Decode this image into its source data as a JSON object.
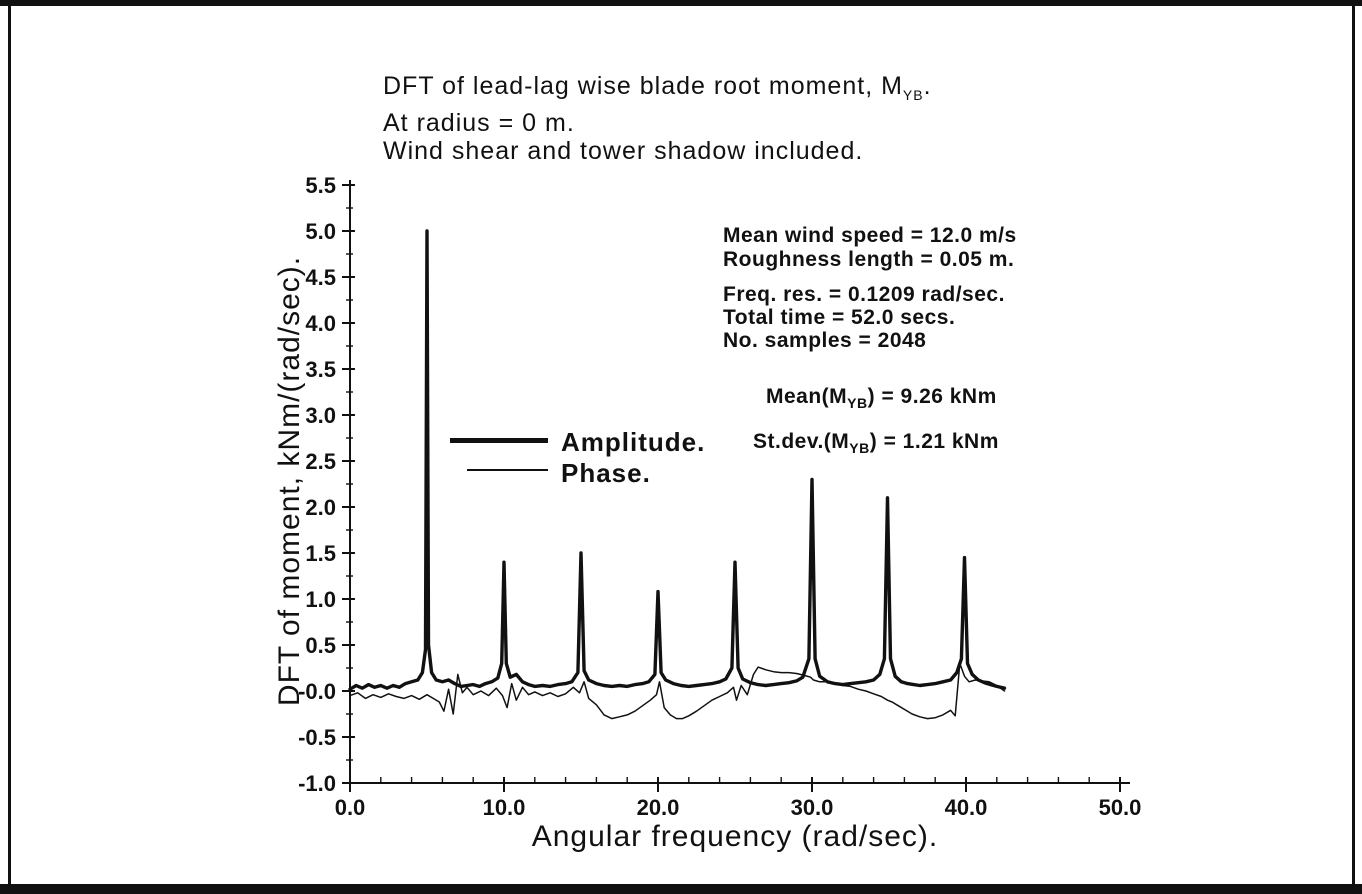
{
  "colors": {
    "ink": "#111111",
    "background": "#ffffff"
  },
  "chart_data": {
    "type": "line",
    "title_lines": {
      "line1": {
        "pre": "DFT of lead-lag wise blade root moment, M",
        "sub": "YB",
        "post": "."
      },
      "line2": "At radius = 0 m.",
      "line3": "Wind shear and tower shadow included."
    },
    "xlabel": "Angular frequency (rad/sec).",
    "ylabel": "DFT of moment, kNm/(rad/sec).",
    "xlim": [
      0,
      50
    ],
    "ylim": [
      -1.0,
      5.5
    ],
    "grid": false,
    "x_tick_values": [
      0,
      10,
      20,
      30,
      40,
      50
    ],
    "x_tick_labels": [
      "0.0",
      "10.0",
      "20.0",
      "30.0",
      "40.0",
      "50.0"
    ],
    "x_minor_tick_step": 2,
    "y_tick_values": [
      5.5,
      5.0,
      4.5,
      4.0,
      3.5,
      3.0,
      2.5,
      2.0,
      1.5,
      1.0,
      0.5,
      0.0,
      -0.5,
      -1.0
    ],
    "y_tick_labels": [
      "5.5",
      "5.0",
      "4.5",
      "4.0",
      "3.5",
      "3.0",
      "2.5",
      "2.0",
      "1.5",
      "1.0",
      "0.5",
      "-0.0",
      "-0.5",
      "-1.0"
    ],
    "y_minor_tick_step": 0.25,
    "legend_position": "inside-left",
    "legend": [
      {
        "label": "Amplitude.",
        "line": "thick"
      },
      {
        "label": "Phase.",
        "line": "thin"
      }
    ],
    "annotations": {
      "info1": [
        "Mean wind speed = 12.0 m/s",
        "Roughness length = 0.05 m."
      ],
      "info2": [
        "Freq. res. = 0.1209 rad/sec.",
        "Total time = 52.0 secs.",
        "No. samples = 2048"
      ],
      "mean": {
        "pre": "Mean(M",
        "sub": "YB",
        "post": ") = 9.26 kNm"
      },
      "stdev": {
        "pre": "St.dev.(M",
        "sub": "YB",
        "post": ") = 1.21 kNm"
      }
    },
    "amplitude_peaks": [
      {
        "x": 5.0,
        "amplitude": 5.0
      },
      {
        "x": 10.0,
        "amplitude": 1.4
      },
      {
        "x": 15.0,
        "amplitude": 1.5
      },
      {
        "x": 20.0,
        "amplitude": 1.1
      },
      {
        "x": 25.0,
        "amplitude": 1.4
      },
      {
        "x": 30.0,
        "amplitude": 2.3
      },
      {
        "x": 34.9,
        "amplitude": 2.1
      },
      {
        "x": 39.9,
        "amplitude": 1.45
      }
    ],
    "series": [
      {
        "name": "Amplitude",
        "points": [
          [
            0,
            0.02
          ],
          [
            0.4,
            0.06
          ],
          [
            0.8,
            0.03
          ],
          [
            1.2,
            0.07
          ],
          [
            1.6,
            0.04
          ],
          [
            2,
            0.06
          ],
          [
            2.4,
            0.03
          ],
          [
            2.8,
            0.06
          ],
          [
            3.2,
            0.04
          ],
          [
            3.6,
            0.08
          ],
          [
            4,
            0.1
          ],
          [
            4.4,
            0.12
          ],
          [
            4.7,
            0.2
          ],
          [
            4.9,
            0.45
          ],
          [
            5,
            5.0
          ],
          [
            5.1,
            0.5
          ],
          [
            5.3,
            0.2
          ],
          [
            5.6,
            0.12
          ],
          [
            6,
            0.1
          ],
          [
            6.4,
            0.12
          ],
          [
            6.8,
            0.08
          ],
          [
            7.2,
            0.05
          ],
          [
            7.6,
            0.06
          ],
          [
            8,
            0.07
          ],
          [
            8.4,
            0.05
          ],
          [
            8.8,
            0.08
          ],
          [
            9.2,
            0.1
          ],
          [
            9.6,
            0.14
          ],
          [
            9.85,
            0.3
          ],
          [
            10,
            1.4
          ],
          [
            10.15,
            0.3
          ],
          [
            10.4,
            0.15
          ],
          [
            10.8,
            0.18
          ],
          [
            11.2,
            0.1
          ],
          [
            11.6,
            0.07
          ],
          [
            12,
            0.05
          ],
          [
            12.5,
            0.06
          ],
          [
            13,
            0.05
          ],
          [
            13.5,
            0.07
          ],
          [
            14,
            0.08
          ],
          [
            14.4,
            0.1
          ],
          [
            14.8,
            0.2
          ],
          [
            15,
            1.5
          ],
          [
            15.2,
            0.22
          ],
          [
            15.5,
            0.12
          ],
          [
            16,
            0.08
          ],
          [
            16.5,
            0.06
          ],
          [
            17,
            0.05
          ],
          [
            17.5,
            0.06
          ],
          [
            18,
            0.05
          ],
          [
            18.5,
            0.07
          ],
          [
            19,
            0.08
          ],
          [
            19.4,
            0.1
          ],
          [
            19.8,
            0.18
          ],
          [
            20,
            1.08
          ],
          [
            20.2,
            0.2
          ],
          [
            20.5,
            0.12
          ],
          [
            21,
            0.08
          ],
          [
            21.5,
            0.06
          ],
          [
            22,
            0.05
          ],
          [
            22.5,
            0.06
          ],
          [
            23,
            0.07
          ],
          [
            23.5,
            0.08
          ],
          [
            24,
            0.1
          ],
          [
            24.4,
            0.13
          ],
          [
            24.8,
            0.25
          ],
          [
            25,
            1.4
          ],
          [
            25.2,
            0.25
          ],
          [
            25.5,
            0.13
          ],
          [
            26,
            0.09
          ],
          [
            26.5,
            0.07
          ],
          [
            27,
            0.06
          ],
          [
            27.5,
            0.07
          ],
          [
            28,
            0.08
          ],
          [
            28.5,
            0.09
          ],
          [
            29,
            0.11
          ],
          [
            29.4,
            0.15
          ],
          [
            29.8,
            0.35
          ],
          [
            30,
            2.3
          ],
          [
            30.2,
            0.35
          ],
          [
            30.5,
            0.16
          ],
          [
            31,
            0.1
          ],
          [
            31.5,
            0.08
          ],
          [
            32,
            0.07
          ],
          [
            32.5,
            0.08
          ],
          [
            33,
            0.09
          ],
          [
            33.5,
            0.1
          ],
          [
            34,
            0.12
          ],
          [
            34.4,
            0.18
          ],
          [
            34.7,
            0.35
          ],
          [
            34.9,
            2.1
          ],
          [
            35.1,
            0.35
          ],
          [
            35.4,
            0.16
          ],
          [
            35.8,
            0.1
          ],
          [
            36.2,
            0.08
          ],
          [
            36.6,
            0.07
          ],
          [
            37,
            0.06
          ],
          [
            37.5,
            0.07
          ],
          [
            38,
            0.08
          ],
          [
            38.5,
            0.1
          ],
          [
            39,
            0.12
          ],
          [
            39.4,
            0.2
          ],
          [
            39.7,
            0.35
          ],
          [
            39.9,
            1.45
          ],
          [
            40.1,
            0.3
          ],
          [
            40.4,
            0.18
          ],
          [
            40.8,
            0.12
          ],
          [
            41.2,
            0.09
          ],
          [
            41.6,
            0.07
          ],
          [
            42,
            0.05
          ],
          [
            42.5,
            0.03
          ]
        ]
      },
      {
        "name": "Phase",
        "points": [
          [
            0,
            -0.05
          ],
          [
            0.5,
            -0.02
          ],
          [
            1,
            -0.08
          ],
          [
            1.5,
            -0.04
          ],
          [
            2,
            -0.07
          ],
          [
            2.5,
            -0.03
          ],
          [
            3,
            -0.06
          ],
          [
            3.5,
            -0.08
          ],
          [
            4,
            -0.05
          ],
          [
            4.5,
            -0.09
          ],
          [
            5,
            -0.04
          ],
          [
            5.4,
            -0.08
          ],
          [
            5.8,
            -0.12
          ],
          [
            6.1,
            -0.22
          ],
          [
            6.4,
            0.02
          ],
          [
            6.7,
            -0.25
          ],
          [
            7,
            0.18
          ],
          [
            7.3,
            -0.02
          ],
          [
            7.6,
            0.04
          ],
          [
            8,
            -0.04
          ],
          [
            8.5,
            0.0
          ],
          [
            9,
            -0.05
          ],
          [
            9.5,
            0.03
          ],
          [
            9.9,
            -0.05
          ],
          [
            10.2,
            -0.18
          ],
          [
            10.5,
            0.08
          ],
          [
            10.8,
            -0.1
          ],
          [
            11.2,
            0.04
          ],
          [
            11.6,
            -0.04
          ],
          [
            12,
            -0.01
          ],
          [
            12.5,
            -0.05
          ],
          [
            13,
            -0.02
          ],
          [
            13.5,
            -0.06
          ],
          [
            14,
            -0.03
          ],
          [
            14.5,
            0.04
          ],
          [
            14.9,
            -0.02
          ],
          [
            15.2,
            0.1
          ],
          [
            15.5,
            -0.08
          ],
          [
            16,
            -0.15
          ],
          [
            16.5,
            -0.26
          ],
          [
            17,
            -0.3
          ],
          [
            17.5,
            -0.28
          ],
          [
            18,
            -0.26
          ],
          [
            18.5,
            -0.22
          ],
          [
            19,
            -0.16
          ],
          [
            19.5,
            -0.1
          ],
          [
            19.9,
            -0.04
          ],
          [
            20.1,
            0.1
          ],
          [
            20.4,
            -0.18
          ],
          [
            20.8,
            -0.26
          ],
          [
            21.2,
            -0.3
          ],
          [
            21.6,
            -0.3
          ],
          [
            22,
            -0.27
          ],
          [
            22.5,
            -0.22
          ],
          [
            23,
            -0.16
          ],
          [
            23.5,
            -0.1
          ],
          [
            24,
            -0.06
          ],
          [
            24.5,
            -0.02
          ],
          [
            24.9,
            0.04
          ],
          [
            25.1,
            -0.1
          ],
          [
            25.4,
            0.06
          ],
          [
            25.8,
            -0.04
          ],
          [
            26.2,
            0.18
          ],
          [
            26.5,
            0.26
          ],
          [
            27,
            0.23
          ],
          [
            27.5,
            0.21
          ],
          [
            28,
            0.2
          ],
          [
            28.5,
            0.2
          ],
          [
            29,
            0.19
          ],
          [
            29.5,
            0.17
          ],
          [
            29.9,
            0.15
          ],
          [
            30.1,
            0.12
          ],
          [
            30.5,
            0.1
          ],
          [
            31,
            0.1
          ],
          [
            31.5,
            0.08
          ],
          [
            32,
            0.06
          ],
          [
            32.5,
            0.05
          ],
          [
            33,
            0.02
          ],
          [
            33.5,
            0.0
          ],
          [
            34,
            -0.03
          ],
          [
            34.5,
            -0.06
          ],
          [
            34.9,
            -0.1
          ],
          [
            35.2,
            -0.12
          ],
          [
            35.6,
            -0.16
          ],
          [
            36,
            -0.2
          ],
          [
            36.5,
            -0.25
          ],
          [
            37,
            -0.28
          ],
          [
            37.5,
            -0.3
          ],
          [
            38,
            -0.29
          ],
          [
            38.5,
            -0.26
          ],
          [
            39,
            -0.21
          ],
          [
            39.3,
            -0.27
          ],
          [
            39.6,
            0.3
          ],
          [
            39.9,
            0.16
          ],
          [
            40.2,
            0.1
          ],
          [
            40.6,
            0.12
          ],
          [
            41,
            0.11
          ],
          [
            41.5,
            0.1
          ],
          [
            42,
            0.06
          ],
          [
            42.5,
            0.0
          ]
        ]
      }
    ]
  }
}
